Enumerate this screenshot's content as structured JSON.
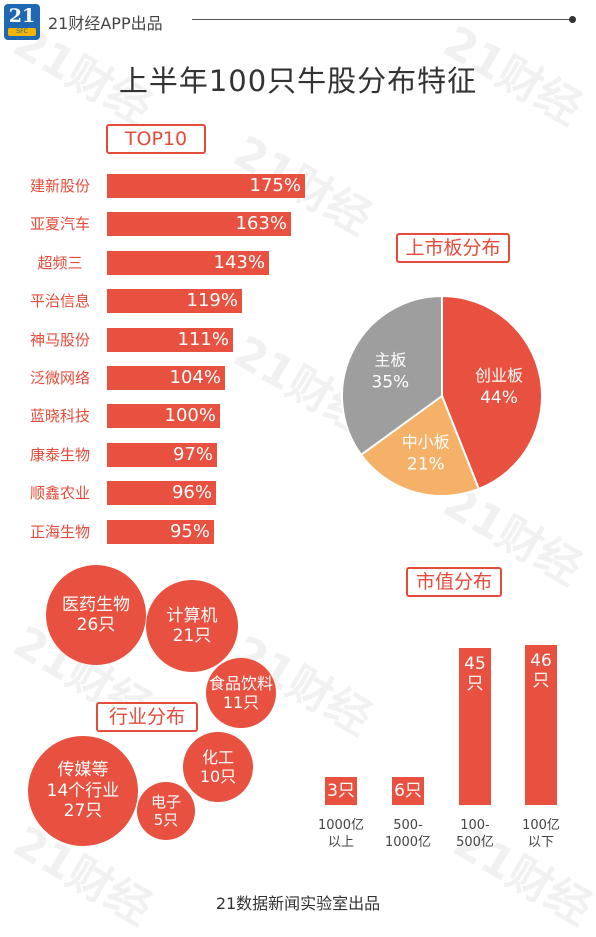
{
  "header": {
    "logo_number": "21",
    "logo_sub": "SFC",
    "brand": "21财经APP出品",
    "title": "上半年100只牛股分布特征",
    "watermark": "21财经"
  },
  "footer": "21数据新闻实验室出品",
  "colors": {
    "accent": "#e8503f",
    "gray": "#9e9e9e",
    "orange": "#f5b167"
  },
  "chart_data": [
    {
      "type": "bar",
      "title": "TOP10",
      "categories": [
        "建新股份",
        "亚夏汽车",
        "超频三",
        "平治信息",
        "神马股份",
        "泛微网络",
        "蓝晓科技",
        "康泰生物",
        "顺鑫农业",
        "正海生物"
      ],
      "values": [
        175,
        163,
        143,
        119,
        111,
        104,
        100,
        97,
        96,
        95
      ],
      "labels": [
        "175%",
        "163%",
        "143%",
        "119%",
        "111%",
        "104%",
        "100%",
        "97%",
        "96%",
        "95%"
      ]
    },
    {
      "type": "pie",
      "title": "上市板分布",
      "slices": [
        {
          "label": "创业板",
          "value": 44,
          "text": "44%"
        },
        {
          "label": "中小板",
          "value": 21,
          "text": "21%"
        },
        {
          "label": "主板",
          "value": 35,
          "text": "35%"
        }
      ]
    },
    {
      "type": "bubble",
      "title": "行业分布",
      "items": [
        {
          "name": "医药生物",
          "count": 26,
          "text": "26只"
        },
        {
          "name": "计算机",
          "count": 21,
          "text": "21只"
        },
        {
          "name": "食品饮料",
          "count": 11,
          "text": "11只"
        },
        {
          "name": "化工",
          "count": 10,
          "text": "10只"
        },
        {
          "name": "传媒等14个行业",
          "count": 27,
          "text": "27只"
        },
        {
          "name": "电子",
          "count": 5,
          "text": "5只"
        }
      ]
    },
    {
      "type": "bar",
      "title": "市值分布",
      "categories": [
        "1000亿以上",
        "500-1000亿",
        "100-500亿",
        "100亿以下"
      ],
      "values": [
        3,
        6,
        45,
        46
      ],
      "value_labels": [
        "3只",
        "6只",
        "45只",
        "46只"
      ],
      "category_lines": [
        [
          "1000亿",
          "以上"
        ],
        [
          "500-",
          "1000亿"
        ],
        [
          "100-",
          "500亿"
        ],
        [
          "100亿",
          "以下"
        ]
      ]
    }
  ]
}
